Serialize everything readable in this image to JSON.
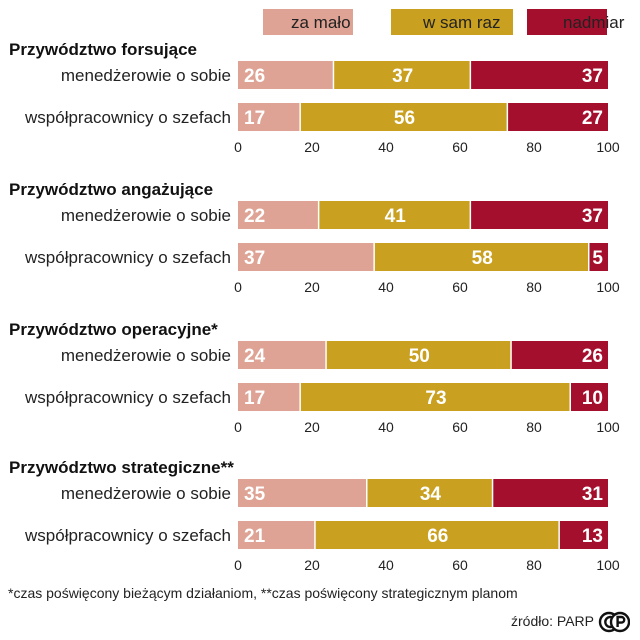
{
  "colors": {
    "za_malo": "#dea394",
    "w_sam_raz": "#c9a020",
    "nadmiar": "#a40f2d",
    "axis_text": "#222222"
  },
  "legend": [
    {
      "key": "za_malo",
      "label": "za mało"
    },
    {
      "key": "w_sam_raz",
      "label": "w sam raz"
    },
    {
      "key": "nadmiar",
      "label": "nadmiar"
    }
  ],
  "chart_data": {
    "type": "bar",
    "orientation": "horizontal-stacked",
    "xlim": [
      0,
      100
    ],
    "x_ticks": [
      "0",
      "20",
      "40",
      "60",
      "80",
      "100"
    ],
    "series_names": [
      "za mało",
      "w sam raz",
      "nadmiar"
    ],
    "groups": [
      {
        "title": "Przywództwo forsujące",
        "rows": [
          {
            "label": "menedżerowie o sobie",
            "values": [
              26,
              37,
              37
            ]
          },
          {
            "label": "współpracownicy o szefach",
            "values": [
              17,
              56,
              27
            ]
          }
        ]
      },
      {
        "title": "Przywództwo angażujące",
        "rows": [
          {
            "label": "menedżerowie o sobie",
            "values": [
              22,
              41,
              37
            ]
          },
          {
            "label": "współpracownicy o szefach",
            "values": [
              37,
              58,
              5
            ]
          }
        ]
      },
      {
        "title": "Przywództwo operacyjne*",
        "rows": [
          {
            "label": "menedżerowie o sobie",
            "values": [
              24,
              50,
              26
            ]
          },
          {
            "label": "współpracownicy o szefach",
            "values": [
              17,
              73,
              10
            ]
          }
        ]
      },
      {
        "title": "Przywództwo strategiczne**",
        "rows": [
          {
            "label": "menedżerowie o sobie",
            "values": [
              35,
              34,
              31
            ]
          },
          {
            "label": "współpracownicy o szefach",
            "values": [
              21,
              66,
              13
            ]
          }
        ]
      }
    ]
  },
  "footnote": "*czas poświęcony bieżącym działaniom, **czas poświęcony strategicznym planom",
  "source": "źródło: PARP"
}
